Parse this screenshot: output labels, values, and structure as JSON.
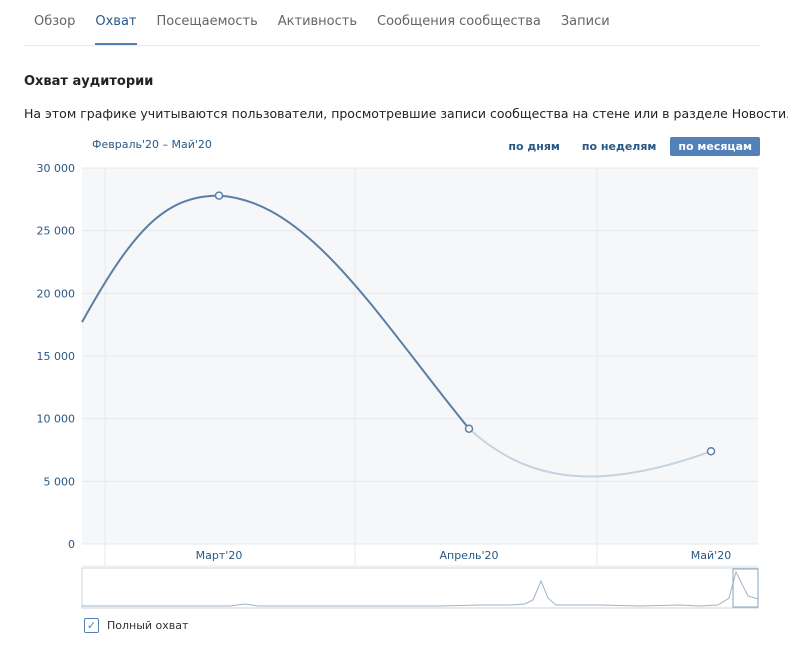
{
  "tabs": [
    {
      "label": "Обзор",
      "active": false
    },
    {
      "label": "Охват",
      "active": true
    },
    {
      "label": "Посещаемость",
      "active": false
    },
    {
      "label": "Активность",
      "active": false
    },
    {
      "label": "Сообщения сообщества",
      "active": false
    },
    {
      "label": "Записи",
      "active": false
    }
  ],
  "section": {
    "title": "Охват аудитории",
    "description": "На этом графике учитываются пользователи, просмотревшие записи сообщества на стене или в разделе Новости."
  },
  "range_label": "Февраль'20 – Май'20",
  "period_buttons": [
    {
      "label": "по дням",
      "active": false
    },
    {
      "label": "по неделям",
      "active": false
    },
    {
      "label": "по месяцам",
      "active": true
    }
  ],
  "legend": {
    "label": "Полный охват",
    "checked": true
  },
  "colors": {
    "accent": "#5181b8",
    "line": "#5b7ea6",
    "line_partial": "#c5d2e0",
    "link": "#2a5885"
  },
  "chart_data": {
    "type": "line",
    "title": "",
    "x_labels": [
      "Март'20",
      "Апрель'20",
      "Май'20"
    ],
    "y_ticks": [
      "0",
      "5 000",
      "10 000",
      "15 000",
      "20 000",
      "25 000",
      "30 000"
    ],
    "ylim": [
      0,
      30000
    ],
    "grid": true,
    "series": [
      {
        "name": "Полный охват",
        "points": [
          {
            "x": "Март'20",
            "y": 27800
          },
          {
            "x": "Апрель'20",
            "y": 9200
          },
          {
            "x": "Май'20",
            "y": 7400
          }
        ]
      }
    ]
  }
}
